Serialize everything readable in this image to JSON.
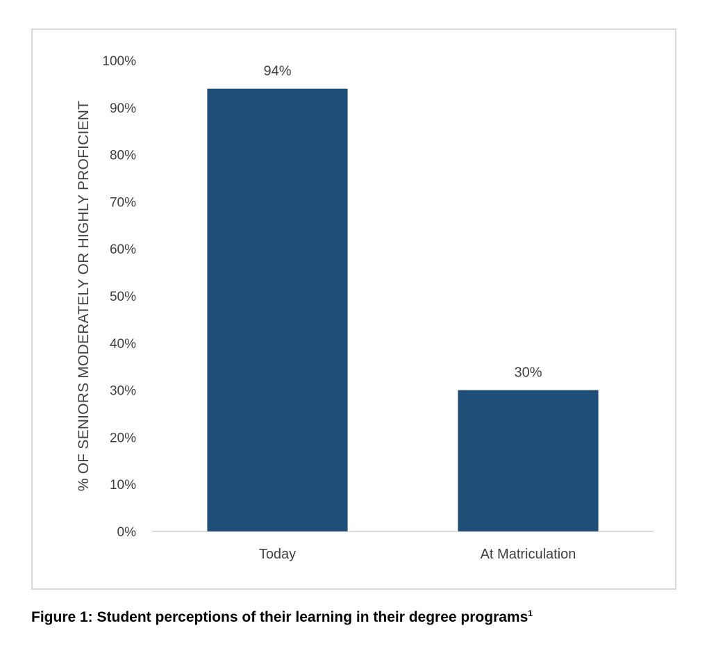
{
  "chart_data": {
    "type": "bar",
    "categories": [
      "Today",
      "At Matriculation"
    ],
    "values": [
      94,
      30
    ],
    "data_labels": [
      "94%",
      "30%"
    ],
    "ylabel": "% OF SENIORS MODERATELY OR HIGHLY PROFICIENT",
    "xlabel": "",
    "ylim": [
      0,
      100
    ],
    "yticks": [
      "0%",
      "10%",
      "20%",
      "30%",
      "40%",
      "50%",
      "60%",
      "70%",
      "80%",
      "90%",
      "100%"
    ],
    "bar_color": "#1f4e79",
    "grid": false,
    "legend": false
  },
  "caption": {
    "text": "Figure 1: Student perceptions of their learning in their degree programs",
    "footnote_mark": "1"
  }
}
